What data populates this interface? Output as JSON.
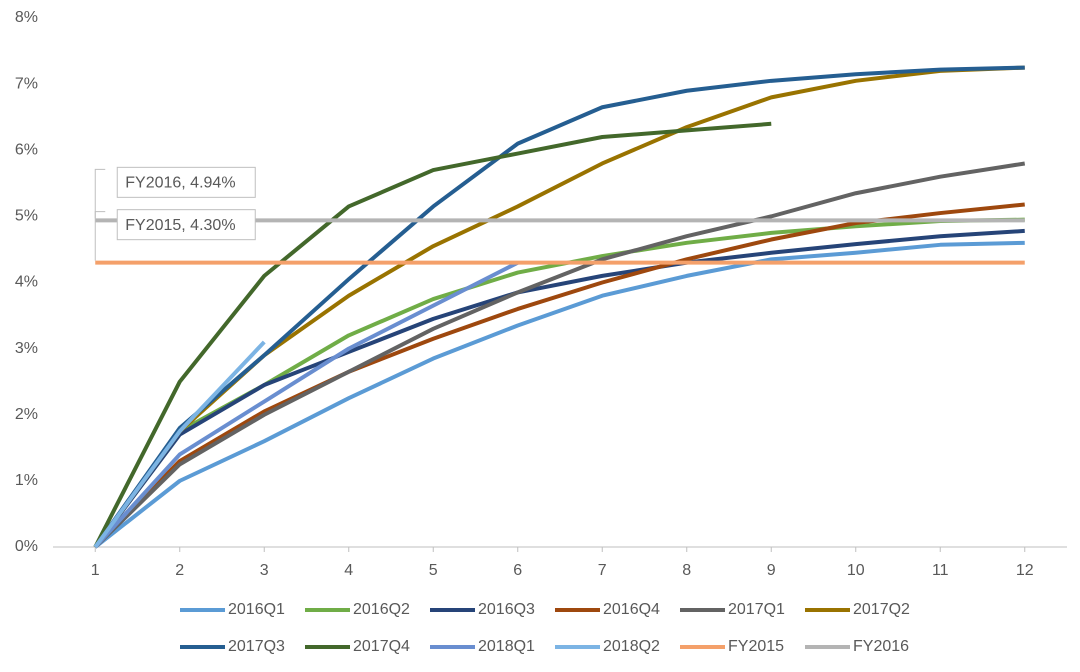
{
  "chart_data": {
    "type": "line",
    "x": [
      1,
      2,
      3,
      4,
      5,
      6,
      7,
      8,
      9,
      10,
      11,
      12
    ],
    "xlim": [
      0.5,
      12.5
    ],
    "xticks": [
      1,
      2,
      3,
      4,
      5,
      6,
      7,
      8,
      9,
      10,
      11,
      12
    ],
    "ylim": [
      0,
      8
    ],
    "yticks": [
      {
        "value": 0,
        "label": "0%"
      },
      {
        "value": 1,
        "label": "1%"
      },
      {
        "value": 2,
        "label": "2%"
      },
      {
        "value": 3,
        "label": "3%"
      },
      {
        "value": 4,
        "label": "4%"
      },
      {
        "value": 5,
        "label": "5%"
      },
      {
        "value": 6,
        "label": "6%"
      },
      {
        "value": 7,
        "label": "7%"
      },
      {
        "value": 8,
        "label": "8%"
      }
    ],
    "grid": false,
    "legend": "bottom",
    "series": [
      {
        "name": "2016Q1",
        "color": "#5b9bd5",
        "values": [
          0,
          1.0,
          1.6,
          2.25,
          2.85,
          3.35,
          3.8,
          4.1,
          4.35,
          4.45,
          4.57,
          4.6
        ]
      },
      {
        "name": "2016Q2",
        "color": "#70ad47",
        "values": [
          0,
          1.75,
          2.45,
          3.2,
          3.75,
          4.15,
          4.4,
          4.6,
          4.75,
          4.85,
          4.93,
          4.95
        ]
      },
      {
        "name": "2016Q3",
        "color": "#264478",
        "values": [
          0,
          1.7,
          2.45,
          2.95,
          3.45,
          3.85,
          4.1,
          4.3,
          4.45,
          4.58,
          4.7,
          4.78
        ]
      },
      {
        "name": "2016Q4",
        "color": "#9e480e",
        "values": [
          0,
          1.3,
          2.05,
          2.65,
          3.15,
          3.6,
          4.0,
          4.35,
          4.65,
          4.9,
          5.05,
          5.18
        ]
      },
      {
        "name": "2017Q1",
        "color": "#636363",
        "values": [
          0,
          1.25,
          2.0,
          2.65,
          3.3,
          3.85,
          4.35,
          4.7,
          5.0,
          5.35,
          5.6,
          5.8
        ]
      },
      {
        "name": "2017Q2",
        "color": "#997300",
        "values": [
          0,
          1.75,
          2.9,
          3.8,
          4.55,
          5.15,
          5.8,
          6.35,
          6.8,
          7.05,
          7.2,
          7.25
        ]
      },
      {
        "name": "2017Q3",
        "color": "#255e91",
        "values": [
          0,
          1.8,
          2.9,
          4.05,
          5.15,
          6.1,
          6.65,
          6.9,
          7.05,
          7.15,
          7.22,
          7.25
        ]
      },
      {
        "name": "2017Q4",
        "color": "#43682b",
        "values": [
          0,
          2.5,
          4.1,
          5.15,
          5.7,
          5.95,
          6.2,
          6.3,
          6.4,
          null,
          null,
          null
        ]
      },
      {
        "name": "2018Q1",
        "color": "#698ed0",
        "values": [
          0,
          1.4,
          2.2,
          3.0,
          3.65,
          4.3,
          null,
          null,
          null,
          null,
          null,
          null
        ]
      },
      {
        "name": "2018Q2",
        "color": "#7cb4e4",
        "values": [
          0,
          1.75,
          3.1,
          null,
          null,
          null,
          null,
          null,
          null,
          null,
          null,
          null
        ]
      },
      {
        "name": "FY2015",
        "color": "#f4a06a",
        "values": [
          4.3,
          4.3,
          4.3,
          4.3,
          4.3,
          4.3,
          4.3,
          4.3,
          4.3,
          4.3,
          4.3,
          4.3
        ]
      },
      {
        "name": "FY2016",
        "color": "#b4b4b4",
        "values": [
          4.94,
          4.94,
          4.94,
          4.94,
          4.94,
          4.94,
          4.94,
          4.94,
          4.94,
          4.94,
          4.94,
          4.94
        ]
      }
    ],
    "annotations": [
      {
        "text": "FY2016, 4.94%",
        "series": 11
      },
      {
        "text": "FY2015, 4.30%",
        "series": 10
      }
    ]
  }
}
